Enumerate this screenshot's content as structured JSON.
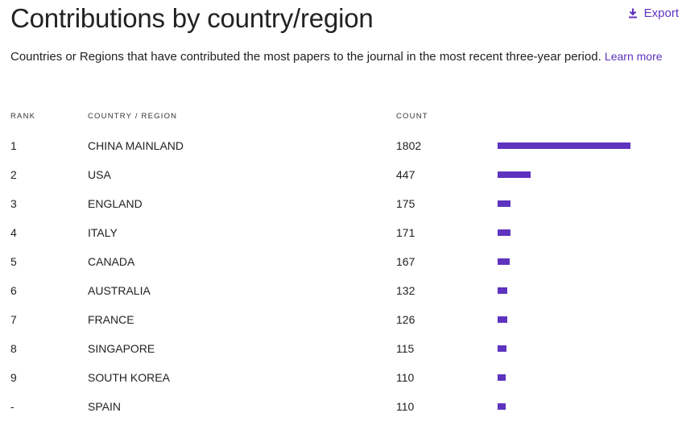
{
  "title": "Contributions by country/region",
  "export": {
    "label": "Export",
    "icon": "download-icon"
  },
  "description": {
    "text": "Countries or Regions that have contributed the most papers to the journal in the most recent three-year period.",
    "link": "Learn more"
  },
  "table": {
    "headers": {
      "rank": "RANK",
      "country": "COUNTRY / REGION",
      "count": "COUNT"
    },
    "rows": [
      {
        "rank": "1",
        "country": "CHINA MAINLAND",
        "count": "1802"
      },
      {
        "rank": "2",
        "country": "USA",
        "count": "447"
      },
      {
        "rank": "3",
        "country": "ENGLAND",
        "count": "175"
      },
      {
        "rank": "4",
        "country": "ITALY",
        "count": "171"
      },
      {
        "rank": "5",
        "country": "CANADA",
        "count": "167"
      },
      {
        "rank": "6",
        "country": "AUSTRALIA",
        "count": "132"
      },
      {
        "rank": "7",
        "country": "FRANCE",
        "count": "126"
      },
      {
        "rank": "8",
        "country": "SINGAPORE",
        "count": "115"
      },
      {
        "rank": "9",
        "country": "SOUTH KOREA",
        "count": "110"
      },
      {
        "rank": "-",
        "country": "SPAIN",
        "count": "110"
      }
    ]
  },
  "colors": {
    "accent": "#5e33bf",
    "text": "#222222"
  },
  "chart_data": {
    "type": "bar",
    "orientation": "horizontal",
    "categories": [
      "CHINA MAINLAND",
      "USA",
      "ENGLAND",
      "ITALY",
      "CANADA",
      "AUSTRALIA",
      "FRANCE",
      "SINGAPORE",
      "SOUTH KOREA",
      "SPAIN"
    ],
    "values": [
      1802,
      447,
      175,
      171,
      167,
      132,
      126,
      115,
      110,
      110
    ],
    "xlim": [
      0,
      1802
    ],
    "grid": false
  }
}
